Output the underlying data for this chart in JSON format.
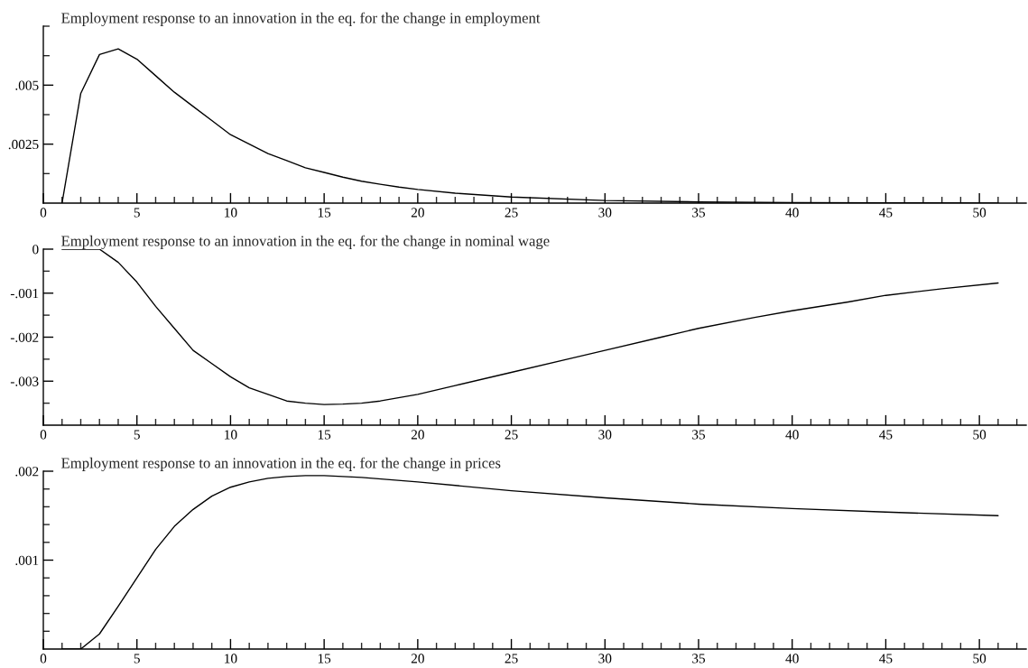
{
  "chart_data": [
    {
      "type": "line",
      "title": "Employment response to an innovation in the eq. for the change in employment",
      "x": [
        1,
        2,
        3,
        4,
        5,
        6,
        7,
        8,
        9,
        10,
        11,
        12,
        13,
        14,
        15,
        16,
        17,
        18,
        19,
        20,
        22,
        25,
        30,
        35,
        40,
        45,
        51
      ],
      "series": [
        {
          "color": "#000000",
          "values": [
            0,
            0.00465,
            0.0063,
            0.00654,
            0.0061,
            0.0054,
            0.0047,
            0.0041,
            0.0035,
            0.0029,
            0.0025,
            0.0021,
            0.0018,
            0.0015,
            0.0013,
            0.0011,
            0.00093,
            0.0008,
            0.00068,
            0.00058,
            0.00042,
            0.00026,
            0.00011,
            5e-05,
            2e-05,
            1e-05,
            5e-06
          ]
        }
      ],
      "xlim": [
        0,
        52.5
      ],
      "ylim": [
        0,
        0.0075
      ],
      "xticks": [
        0,
        {
          "value": 1,
          "label": null
        },
        {
          "value": 2,
          "label": null
        },
        {
          "value": 3,
          "label": null
        },
        {
          "value": 4,
          "label": null
        },
        5,
        {
          "value": 6,
          "label": null
        },
        {
          "value": 7,
          "label": null
        },
        {
          "value": 8,
          "label": null
        },
        {
          "value": 9,
          "label": null
        },
        10,
        {
          "value": 11,
          "label": null
        },
        {
          "value": 12,
          "label": null
        },
        {
          "value": 13,
          "label": null
        },
        {
          "value": 14,
          "label": null
        },
        15,
        {
          "value": 16,
          "label": null
        },
        {
          "value": 17,
          "label": null
        },
        {
          "value": 18,
          "label": null
        },
        {
          "value": 19,
          "label": null
        },
        20,
        {
          "value": 21,
          "label": null
        },
        {
          "value": 22,
          "label": null
        },
        {
          "value": 23,
          "label": null
        },
        {
          "value": 24,
          "label": null
        },
        25,
        {
          "value": 26,
          "label": null
        },
        {
          "value": 27,
          "label": null
        },
        {
          "value": 28,
          "label": null
        },
        {
          "value": 29,
          "label": null
        },
        30,
        {
          "value": 31,
          "label": null
        },
        {
          "value": 32,
          "label": null
        },
        {
          "value": 33,
          "label": null
        },
        {
          "value": 34,
          "label": null
        },
        35,
        {
          "value": 36,
          "label": null
        },
        {
          "value": 37,
          "label": null
        },
        {
          "value": 38,
          "label": null
        },
        {
          "value": 39,
          "label": null
        },
        40,
        {
          "value": 41,
          "label": null
        },
        {
          "value": 42,
          "label": null
        },
        {
          "value": 43,
          "label": null
        },
        {
          "value": 44,
          "label": null
        },
        45,
        {
          "value": 46,
          "label": null
        },
        {
          "value": 47,
          "label": null
        },
        {
          "value": 48,
          "label": null
        },
        {
          "value": 49,
          "label": null
        },
        50,
        {
          "value": 51,
          "label": null
        },
        {
          "value": 52,
          "label": null
        }
      ],
      "yticks": [
        {
          "value": 0.00125,
          "label": null
        },
        {
          "value": 0.0025,
          "label": ".0025"
        },
        {
          "value": 0.00375,
          "label": null
        },
        {
          "value": 0.005,
          "label": ".005"
        },
        {
          "value": 0.00625,
          "label": null
        },
        {
          "value": 0.0075,
          "label": null
        }
      ],
      "grid": false,
      "legend": false,
      "marker": "none",
      "line_style": "solid"
    },
    {
      "type": "line",
      "title": "Employment response to an innovation in the eq. for the change in nominal wage",
      "x": [
        1,
        2,
        3,
        4,
        5,
        6,
        7,
        8,
        9,
        10,
        11,
        12,
        13,
        14,
        15,
        16,
        17,
        18,
        20,
        22,
        25,
        28,
        30,
        33,
        35,
        38,
        40,
        43,
        45,
        48,
        51
      ],
      "series": [
        {
          "color": "#000000",
          "values": [
            0,
            0,
            0,
            -0.0003,
            -0.00075,
            -0.0013,
            -0.0018,
            -0.0023,
            -0.0026,
            -0.0029,
            -0.00315,
            -0.0033,
            -0.00345,
            -0.0035,
            -0.00353,
            -0.00352,
            -0.0035,
            -0.00345,
            -0.0033,
            -0.0031,
            -0.0028,
            -0.0025,
            -0.0023,
            -0.002,
            -0.0018,
            -0.00155,
            -0.0014,
            -0.0012,
            -0.00105,
            -0.0009,
            -0.00077
          ]
        }
      ],
      "xlim": [
        0,
        52.5
      ],
      "ylim": [
        -0.004,
        0
      ],
      "xticks": [
        0,
        {
          "value": 1,
          "label": null
        },
        {
          "value": 2,
          "label": null
        },
        {
          "value": 3,
          "label": null
        },
        {
          "value": 4,
          "label": null
        },
        5,
        {
          "value": 6,
          "label": null
        },
        {
          "value": 7,
          "label": null
        },
        {
          "value": 8,
          "label": null
        },
        {
          "value": 9,
          "label": null
        },
        10,
        {
          "value": 11,
          "label": null
        },
        {
          "value": 12,
          "label": null
        },
        {
          "value": 13,
          "label": null
        },
        {
          "value": 14,
          "label": null
        },
        15,
        {
          "value": 16,
          "label": null
        },
        {
          "value": 17,
          "label": null
        },
        {
          "value": 18,
          "label": null
        },
        {
          "value": 19,
          "label": null
        },
        20,
        {
          "value": 21,
          "label": null
        },
        {
          "value": 22,
          "label": null
        },
        {
          "value": 23,
          "label": null
        },
        {
          "value": 24,
          "label": null
        },
        25,
        {
          "value": 26,
          "label": null
        },
        {
          "value": 27,
          "label": null
        },
        {
          "value": 28,
          "label": null
        },
        {
          "value": 29,
          "label": null
        },
        30,
        {
          "value": 31,
          "label": null
        },
        {
          "value": 32,
          "label": null
        },
        {
          "value": 33,
          "label": null
        },
        {
          "value": 34,
          "label": null
        },
        35,
        {
          "value": 36,
          "label": null
        },
        {
          "value": 37,
          "label": null
        },
        {
          "value": 38,
          "label": null
        },
        {
          "value": 39,
          "label": null
        },
        40,
        {
          "value": 41,
          "label": null
        },
        {
          "value": 42,
          "label": null
        },
        {
          "value": 43,
          "label": null
        },
        {
          "value": 44,
          "label": null
        },
        45,
        {
          "value": 46,
          "label": null
        },
        {
          "value": 47,
          "label": null
        },
        {
          "value": 48,
          "label": null
        },
        {
          "value": 49,
          "label": null
        },
        50,
        {
          "value": 51,
          "label": null
        },
        {
          "value": 52,
          "label": null
        }
      ],
      "yticks": [
        {
          "value": -0.0035,
          "label": null
        },
        {
          "value": -0.003,
          "label": "-.003"
        },
        {
          "value": -0.0025,
          "label": null
        },
        {
          "value": -0.002,
          "label": "-.002"
        },
        {
          "value": -0.0015,
          "label": null
        },
        {
          "value": -0.001,
          "label": "-.001"
        },
        {
          "value": -0.0005,
          "label": null
        },
        0
      ],
      "grid": false,
      "legend": false,
      "marker": "none",
      "line_style": "solid"
    },
    {
      "type": "line",
      "title": "Employment response to an innovation in the eq. for the change in prices",
      "x": [
        1,
        2,
        3,
        4,
        5,
        6,
        7,
        8,
        9,
        10,
        11,
        12,
        13,
        14,
        15,
        17,
        20,
        25,
        30,
        35,
        40,
        45,
        51
      ],
      "series": [
        {
          "color": "#000000",
          "values": [
            0,
            0,
            0.00017,
            0.00048,
            0.0008,
            0.00112,
            0.00138,
            0.00157,
            0.00172,
            0.00182,
            0.00188,
            0.00192,
            0.00194,
            0.00195,
            0.00195,
            0.00193,
            0.00188,
            0.00178,
            0.0017,
            0.00163,
            0.00158,
            0.00154,
            0.0015
          ]
        }
      ],
      "xlim": [
        0,
        52.5
      ],
      "ylim": [
        0,
        0.002
      ],
      "xticks": [
        0,
        {
          "value": 1,
          "label": null
        },
        {
          "value": 2,
          "label": null
        },
        {
          "value": 3,
          "label": null
        },
        {
          "value": 4,
          "label": null
        },
        5,
        {
          "value": 6,
          "label": null
        },
        {
          "value": 7,
          "label": null
        },
        {
          "value": 8,
          "label": null
        },
        {
          "value": 9,
          "label": null
        },
        10,
        {
          "value": 11,
          "label": null
        },
        {
          "value": 12,
          "label": null
        },
        {
          "value": 13,
          "label": null
        },
        {
          "value": 14,
          "label": null
        },
        15,
        {
          "value": 16,
          "label": null
        },
        {
          "value": 17,
          "label": null
        },
        {
          "value": 18,
          "label": null
        },
        {
          "value": 19,
          "label": null
        },
        20,
        {
          "value": 21,
          "label": null
        },
        {
          "value": 22,
          "label": null
        },
        {
          "value": 23,
          "label": null
        },
        {
          "value": 24,
          "label": null
        },
        25,
        {
          "value": 26,
          "label": null
        },
        {
          "value": 27,
          "label": null
        },
        {
          "value": 28,
          "label": null
        },
        {
          "value": 29,
          "label": null
        },
        30,
        {
          "value": 31,
          "label": null
        },
        {
          "value": 32,
          "label": null
        },
        {
          "value": 33,
          "label": null
        },
        {
          "value": 34,
          "label": null
        },
        35,
        {
          "value": 36,
          "label": null
        },
        {
          "value": 37,
          "label": null
        },
        {
          "value": 38,
          "label": null
        },
        {
          "value": 39,
          "label": null
        },
        40,
        {
          "value": 41,
          "label": null
        },
        {
          "value": 42,
          "label": null
        },
        {
          "value": 43,
          "label": null
        },
        {
          "value": 44,
          "label": null
        },
        45,
        {
          "value": 46,
          "label": null
        },
        {
          "value": 47,
          "label": null
        },
        {
          "value": 48,
          "label": null
        },
        {
          "value": 49,
          "label": null
        },
        50,
        {
          "value": 51,
          "label": null
        },
        {
          "value": 52,
          "label": null
        }
      ],
      "yticks": [
        {
          "value": 0.0002,
          "label": null
        },
        {
          "value": 0.0004,
          "label": null
        },
        {
          "value": 0.0006,
          "label": null
        },
        {
          "value": 0.0008,
          "label": null
        },
        {
          "value": 0.001,
          "label": ".001"
        },
        {
          "value": 0.0012,
          "label": null
        },
        {
          "value": 0.0014,
          "label": null
        },
        {
          "value": 0.0016,
          "label": null
        },
        {
          "value": 0.0018,
          "label": null
        },
        {
          "value": 0.002,
          "label": ".002"
        }
      ],
      "grid": false,
      "legend": false,
      "marker": "none",
      "line_style": "solid"
    }
  ]
}
